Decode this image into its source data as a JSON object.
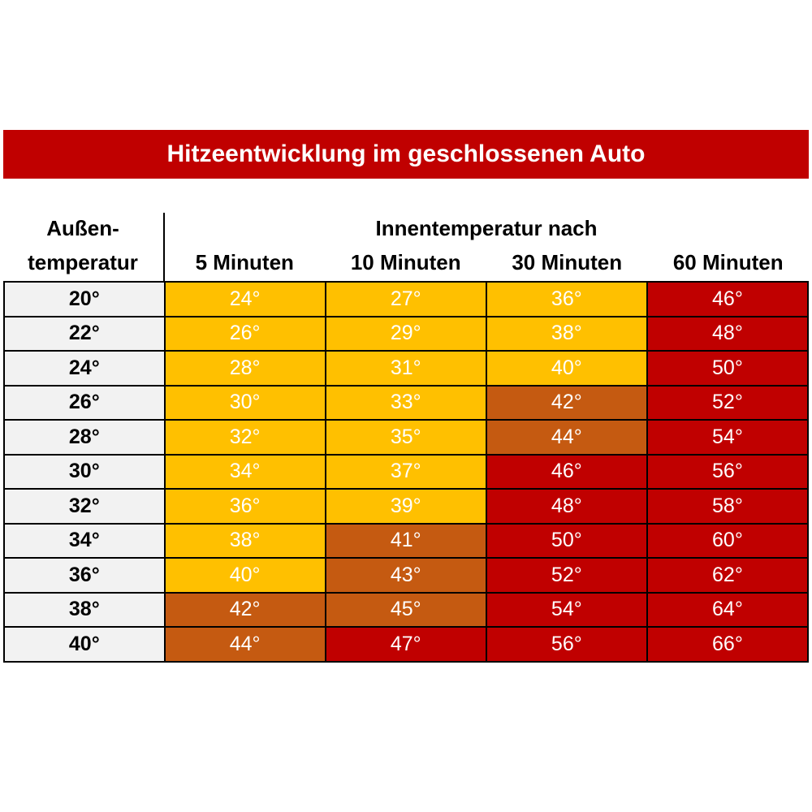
{
  "title": "Hitzeentwicklung im geschlossenen Auto",
  "header": {
    "row_header": [
      "Außen-",
      "temperatur"
    ],
    "group_header": "Innentemperatur nach",
    "columns": [
      "5 Minuten",
      "10 Minuten",
      "30 Minuten",
      "60 Minuten"
    ]
  },
  "table": {
    "rows": [
      [
        "20°",
        "24°",
        "27°",
        "36°",
        "46°"
      ],
      [
        "22°",
        "26°",
        "29°",
        "38°",
        "48°"
      ],
      [
        "24°",
        "28°",
        "31°",
        "40°",
        "50°"
      ],
      [
        "26°",
        "30°",
        "33°",
        "42°",
        "52°"
      ],
      [
        "28°",
        "32°",
        "35°",
        "44°",
        "54°"
      ],
      [
        "30°",
        "34°",
        "37°",
        "46°",
        "56°"
      ],
      [
        "32°",
        "36°",
        "39°",
        "48°",
        "58°"
      ],
      [
        "34°",
        "38°",
        "41°",
        "50°",
        "60°"
      ],
      [
        "36°",
        "40°",
        "43°",
        "52°",
        "62°"
      ],
      [
        "38°",
        "42°",
        "45°",
        "54°",
        "64°"
      ],
      [
        "40°",
        "44°",
        "47°",
        "56°",
        "66°"
      ]
    ],
    "cell_colors": [
      [
        "#f2f2f2",
        "#ffc000",
        "#ffc000",
        "#ffc000",
        "#c00000"
      ],
      [
        "#f2f2f2",
        "#ffc000",
        "#ffc000",
        "#ffc000",
        "#c00000"
      ],
      [
        "#f2f2f2",
        "#ffc000",
        "#ffc000",
        "#ffc000",
        "#c00000"
      ],
      [
        "#f2f2f2",
        "#ffc000",
        "#ffc000",
        "#c55a11",
        "#c00000"
      ],
      [
        "#f2f2f2",
        "#ffc000",
        "#ffc000",
        "#c55a11",
        "#c00000"
      ],
      [
        "#f2f2f2",
        "#ffc000",
        "#ffc000",
        "#c00000",
        "#c00000"
      ],
      [
        "#f2f2f2",
        "#ffc000",
        "#ffc000",
        "#c00000",
        "#c00000"
      ],
      [
        "#f2f2f2",
        "#ffc000",
        "#c55a11",
        "#c00000",
        "#c00000"
      ],
      [
        "#f2f2f2",
        "#ffc000",
        "#c55a11",
        "#c00000",
        "#c00000"
      ],
      [
        "#f2f2f2",
        "#c55a11",
        "#c55a11",
        "#c00000",
        "#c00000"
      ],
      [
        "#f2f2f2",
        "#c55a11",
        "#c00000",
        "#c00000",
        "#c00000"
      ]
    ]
  }
}
